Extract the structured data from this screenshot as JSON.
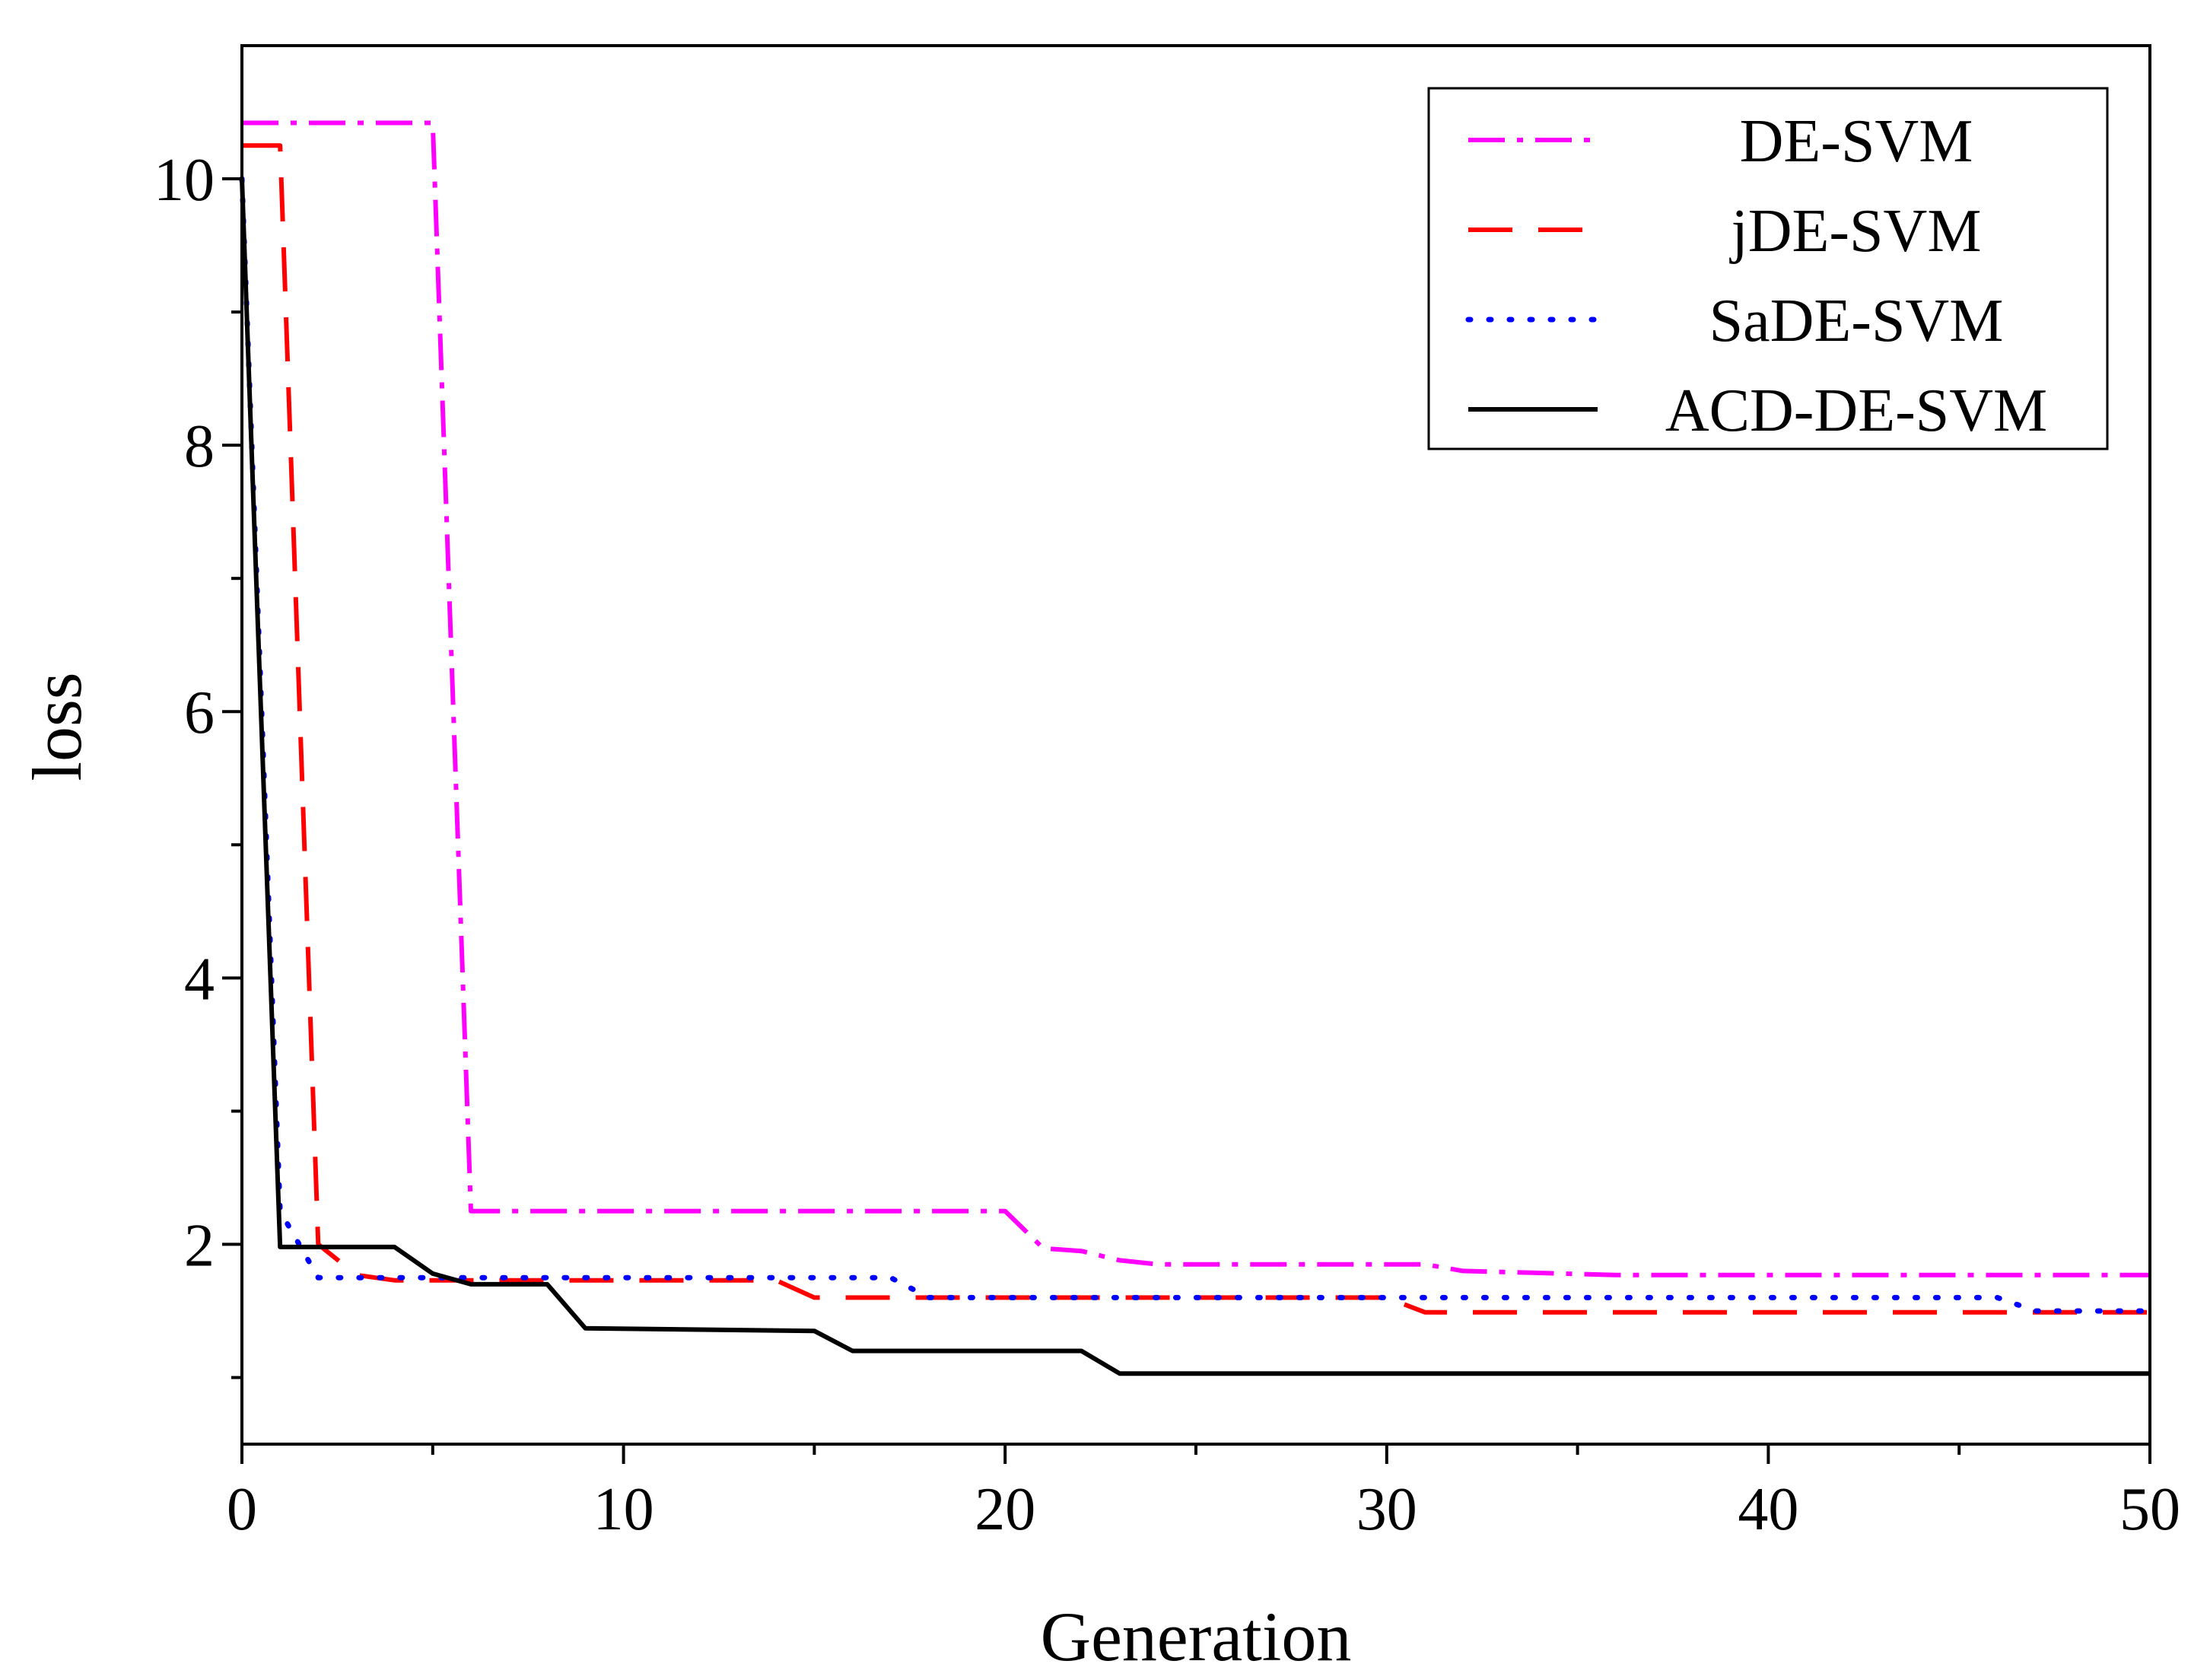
{
  "chart_data": {
    "type": "line",
    "title": "",
    "xlabel": "Generation",
    "ylabel": "loss",
    "xlim": [
      0,
      50
    ],
    "ylim": [
      0.5,
      11
    ],
    "xticks": [
      0,
      10,
      20,
      30,
      40,
      50
    ],
    "yticks": [
      2,
      4,
      6,
      8,
      10
    ],
    "x_minor_ticks": [
      5,
      15,
      25,
      35,
      45
    ],
    "y_minor_ticks": [
      1,
      3,
      5,
      7,
      9
    ],
    "grid": false,
    "legend_position": "top-right",
    "series": [
      {
        "name": "DE-SVM",
        "color": "#ff00ff",
        "style": "dash-dot",
        "points": [
          [
            0,
            10.42
          ],
          [
            5,
            10.42
          ],
          [
            6,
            2.25
          ],
          [
            20,
            2.25
          ],
          [
            21,
            1.97
          ],
          [
            22,
            1.95
          ],
          [
            23,
            1.88
          ],
          [
            24,
            1.85
          ],
          [
            31,
            1.85
          ],
          [
            32,
            1.8
          ],
          [
            36,
            1.77
          ],
          [
            50,
            1.77
          ]
        ]
      },
      {
        "name": "jDE-SVM",
        "color": "#ff0000",
        "style": "dash",
        "points": [
          [
            0,
            10.25
          ],
          [
            1,
            10.25
          ],
          [
            2,
            2.0
          ],
          [
            3,
            1.77
          ],
          [
            4,
            1.73
          ],
          [
            14,
            1.73
          ],
          [
            15,
            1.6
          ],
          [
            30,
            1.6
          ],
          [
            31,
            1.49
          ],
          [
            50,
            1.49
          ]
        ]
      },
      {
        "name": "SaDE-SVM",
        "color": "#0000ff",
        "style": "dot",
        "points": [
          [
            0,
            10.0
          ],
          [
            1,
            2.25
          ],
          [
            2,
            1.75
          ],
          [
            17,
            1.75
          ],
          [
            18,
            1.6
          ],
          [
            46,
            1.6
          ],
          [
            47,
            1.5
          ],
          [
            50,
            1.5
          ]
        ]
      },
      {
        "name": "ACD-DE-SVM",
        "color": "#000000",
        "style": "solid",
        "points": [
          [
            0,
            10.0
          ],
          [
            1,
            1.98
          ],
          [
            4,
            1.98
          ],
          [
            5,
            1.78
          ],
          [
            6,
            1.7
          ],
          [
            8,
            1.7
          ],
          [
            9,
            1.37
          ],
          [
            15,
            1.35
          ],
          [
            16,
            1.2
          ],
          [
            22,
            1.2
          ],
          [
            23,
            1.03
          ],
          [
            50,
            1.03
          ]
        ]
      }
    ]
  }
}
